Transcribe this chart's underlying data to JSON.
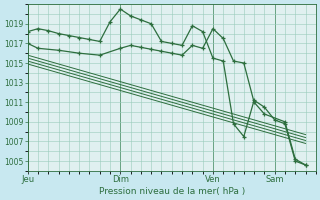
{
  "title": "Pression niveau de la mer( hPa )",
  "background_color": "#c8e8f0",
  "plot_background": "#e0f0f0",
  "grid_color": "#99ccbb",
  "line_color": "#2d6e3e",
  "text_color": "#2d6e3e",
  "ylim": [
    1004.0,
    1021.0
  ],
  "yticks": [
    1005,
    1007,
    1009,
    1011,
    1013,
    1015,
    1017,
    1019
  ],
  "day_labels": [
    "Jeu",
    "Dim",
    "Ven",
    "Sam"
  ],
  "day_positions": [
    0,
    9,
    18,
    24
  ],
  "xlim": [
    0,
    28
  ],
  "line1_x": [
    0,
    1,
    2,
    3,
    4,
    5,
    6,
    7,
    8,
    9,
    10,
    11,
    12,
    13,
    14,
    15,
    16,
    17,
    18,
    19,
    20,
    21,
    22,
    23,
    24,
    25,
    26,
    27
  ],
  "line1_y": [
    1018.2,
    1018.5,
    1018.3,
    1018.0,
    1017.8,
    1017.6,
    1017.4,
    1017.2,
    1019.2,
    1020.5,
    1019.8,
    1019.4,
    1019.0,
    1017.2,
    1017.0,
    1016.8,
    1018.8,
    1018.2,
    1015.5,
    1015.2,
    1008.8,
    1007.5,
    1011.2,
    1010.5,
    1009.2,
    1008.8,
    1005.0,
    1004.6
  ],
  "line2_x": [
    0,
    1,
    3,
    5,
    7,
    9,
    10,
    11,
    12,
    13,
    14,
    15,
    16,
    17,
    18,
    19,
    20,
    21,
    22,
    23,
    25,
    26,
    27
  ],
  "line2_y": [
    1017.0,
    1016.5,
    1016.3,
    1016.0,
    1015.8,
    1016.5,
    1016.8,
    1016.6,
    1016.4,
    1016.2,
    1016.0,
    1015.8,
    1016.8,
    1016.5,
    1018.5,
    1017.5,
    1015.2,
    1015.0,
    1011.0,
    1009.8,
    1009.0,
    1005.2,
    1004.6
  ],
  "band_x": [
    0,
    1,
    2,
    3,
    4,
    5,
    6,
    7,
    8,
    9,
    10,
    11,
    12,
    13,
    14,
    15,
    16,
    17,
    18,
    19,
    20,
    21,
    22,
    23,
    24,
    25,
    26,
    27
  ],
  "band1_y": [
    1015.8,
    1015.5,
    1015.2,
    1014.9,
    1014.6,
    1014.3,
    1014.0,
    1013.7,
    1013.4,
    1013.1,
    1012.8,
    1012.5,
    1012.2,
    1011.9,
    1011.6,
    1011.3,
    1011.0,
    1010.7,
    1010.4,
    1010.1,
    1009.8,
    1009.5,
    1009.2,
    1008.9,
    1008.6,
    1008.3,
    1008.0,
    1007.7
  ],
  "band2_y": [
    1015.5,
    1015.2,
    1014.9,
    1014.6,
    1014.3,
    1014.0,
    1013.7,
    1013.4,
    1013.1,
    1012.8,
    1012.5,
    1012.2,
    1011.9,
    1011.6,
    1011.3,
    1011.0,
    1010.7,
    1010.4,
    1010.1,
    1009.8,
    1009.5,
    1009.2,
    1008.9,
    1008.6,
    1008.3,
    1008.0,
    1007.7,
    1007.4
  ],
  "band3_y": [
    1015.2,
    1014.9,
    1014.6,
    1014.3,
    1014.0,
    1013.7,
    1013.4,
    1013.1,
    1012.8,
    1012.5,
    1012.2,
    1011.9,
    1011.6,
    1011.3,
    1011.0,
    1010.7,
    1010.4,
    1010.1,
    1009.8,
    1009.5,
    1009.2,
    1008.9,
    1008.6,
    1008.3,
    1008.0,
    1007.7,
    1007.4,
    1007.1
  ],
  "band4_y": [
    1014.9,
    1014.6,
    1014.3,
    1014.0,
    1013.7,
    1013.4,
    1013.1,
    1012.8,
    1012.5,
    1012.2,
    1011.9,
    1011.6,
    1011.3,
    1011.0,
    1010.7,
    1010.4,
    1010.1,
    1009.8,
    1009.5,
    1009.2,
    1008.9,
    1008.6,
    1008.3,
    1008.0,
    1007.7,
    1007.4,
    1007.1,
    1006.8
  ]
}
